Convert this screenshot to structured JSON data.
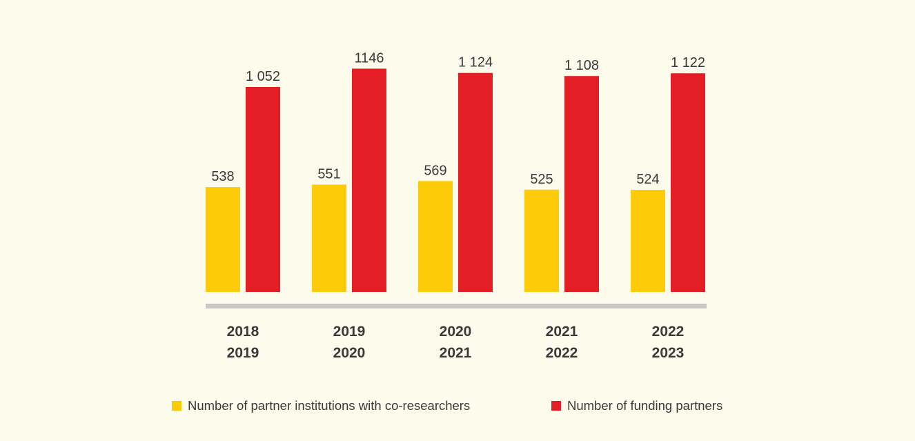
{
  "chart_data": {
    "type": "bar",
    "categories": [
      [
        "2018",
        "2019"
      ],
      [
        "2019",
        "2020"
      ],
      [
        "2020",
        "2021"
      ],
      [
        "2021",
        "2022"
      ],
      [
        "2022",
        "2023"
      ]
    ],
    "series": [
      {
        "name": "Number of partner institutions with co-researchers",
        "color": "#fdcb0a",
        "values": [
          538,
          551,
          569,
          525,
          524
        ],
        "labels": [
          "538",
          "551",
          "569",
          "525",
          "524"
        ]
      },
      {
        "name": "Number of funding partners",
        "color": "#e31e25",
        "values": [
          1052,
          1146,
          1124,
          1108,
          1122
        ],
        "labels": [
          "1 052",
          "1146",
          "1 124",
          "1 108",
          "1 122"
        ]
      }
    ],
    "ylim": [
      0,
      1300
    ],
    "grid": false,
    "legend_position": "bottom",
    "baseline_color": "#c9c8c3"
  }
}
